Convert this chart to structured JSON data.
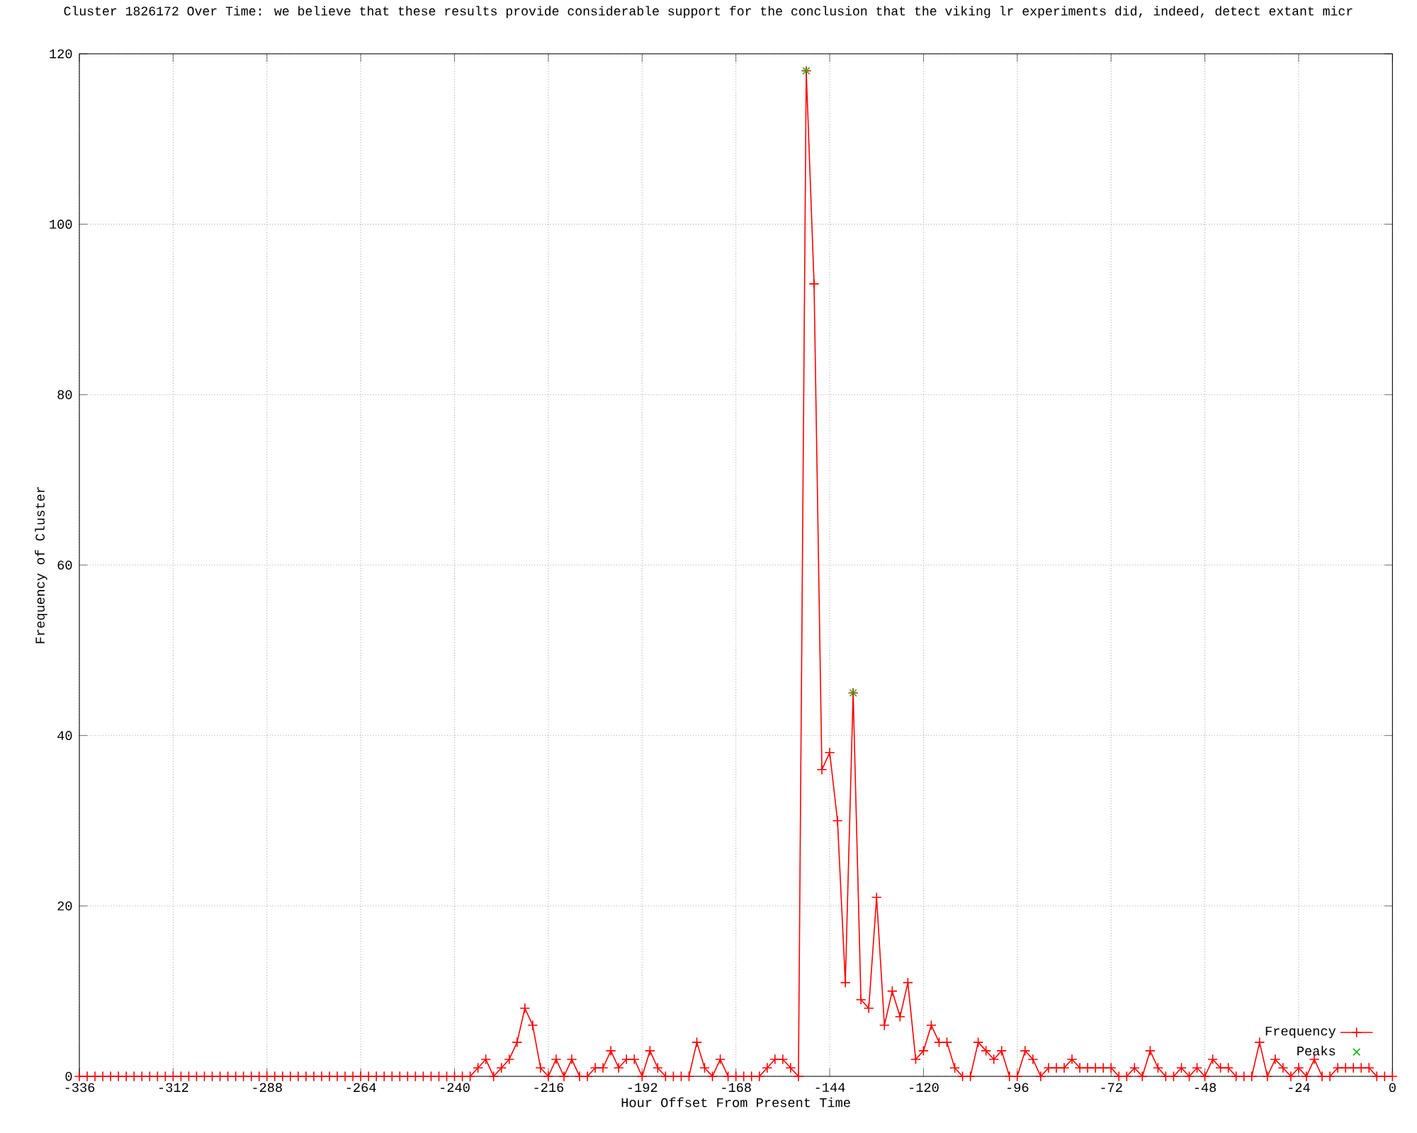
{
  "chart_data": {
    "type": "line",
    "title": "Cluster 1826172 Over Time: we believe that these results provide considerable support for the conclusion that the viking lr experiments did, indeed, detect extant micr",
    "xlabel": "Hour Offset From Present Time",
    "ylabel": "Frequency of Cluster",
    "xlim": [
      -336,
      0
    ],
    "ylim": [
      0,
      120
    ],
    "xticks": [
      -336,
      -312,
      -288,
      -264,
      -240,
      -216,
      -192,
      -168,
      -144,
      -120,
      -96,
      -72,
      -48,
      -24,
      0
    ],
    "yticks": [
      0,
      20,
      40,
      60,
      80,
      100,
      120
    ],
    "grid": true,
    "legend": "bottom right",
    "series": [
      {
        "name": "Frequency",
        "color": "#ff0000",
        "marker": "cross",
        "x": [
          -336,
          -334,
          -332,
          -330,
          -328,
          -326,
          -324,
          -322,
          -320,
          -318,
          -316,
          -314,
          -312,
          -310,
          -308,
          -306,
          -304,
          -302,
          -300,
          -298,
          -296,
          -294,
          -292,
          -290,
          -288,
          -286,
          -284,
          -282,
          -280,
          -278,
          -276,
          -274,
          -272,
          -270,
          -268,
          -266,
          -264,
          -262,
          -260,
          -258,
          -256,
          -254,
          -252,
          -250,
          -248,
          -246,
          -244,
          -242,
          -240,
          -238,
          -236,
          -234,
          -232,
          -230,
          -228,
          -226,
          -224,
          -222,
          -220,
          -218,
          -216,
          -214,
          -212,
          -210,
          -208,
          -206,
          -204,
          -202,
          -200,
          -198,
          -196,
          -194,
          -192,
          -190,
          -188,
          -186,
          -184,
          -182,
          -180,
          -178,
          -176,
          -174,
          -172,
          -170,
          -168,
          -166,
          -164,
          -162,
          -160,
          -158,
          -156,
          -154,
          -152,
          -150,
          -148,
          -146,
          -144,
          -142,
          -140,
          -138,
          -136,
          -134,
          -132,
          -130,
          -128,
          -126,
          -124,
          -122,
          -120,
          -118,
          -116,
          -114,
          -112,
          -110,
          -108,
          -106,
          -104,
          -102,
          -100,
          -98,
          -96,
          -94,
          -92,
          -90,
          -88,
          -86,
          -84,
          -82,
          -80,
          -78,
          -76,
          -74,
          -72,
          -70,
          -68,
          -66,
          -64,
          -62,
          -60,
          -58,
          -56,
          -54,
          -52,
          -50,
          -48,
          -46,
          -44,
          -42,
          -40,
          -38,
          -36,
          -34,
          -32,
          -30,
          -28,
          -26,
          -24,
          -22,
          -20,
          -18,
          -16,
          -14,
          -12,
          -10,
          -8,
          -6,
          -4,
          -2,
          0
        ],
        "values": [
          0,
          0,
          0,
          0,
          0,
          0,
          0,
          0,
          0,
          0,
          0,
          0,
          0,
          0,
          0,
          0,
          0,
          0,
          0,
          0,
          0,
          0,
          0,
          0,
          0,
          0,
          0,
          0,
          0,
          0,
          0,
          0,
          0,
          0,
          0,
          0,
          0,
          0,
          0,
          0,
          0,
          0,
          0,
          0,
          0,
          0,
          0,
          0,
          0,
          0,
          0,
          1,
          2,
          0,
          1,
          2,
          4,
          8,
          6,
          1,
          0,
          2,
          0,
          2,
          0,
          0,
          1,
          1,
          3,
          1,
          2,
          2,
          0,
          3,
          1,
          0,
          0,
          0,
          0,
          4,
          1,
          0,
          2,
          0,
          0,
          0,
          0,
          0,
          1,
          2,
          2,
          1,
          0,
          118,
          93,
          36,
          38,
          30,
          11,
          45,
          9,
          8,
          21,
          6,
          10,
          7,
          11,
          2,
          3,
          6,
          4,
          4,
          1,
          0,
          0,
          4,
          3,
          2,
          3,
          0,
          0,
          3,
          2,
          0,
          1,
          1,
          1,
          2,
          1,
          1,
          1,
          1,
          1,
          0,
          0,
          1,
          0,
          3,
          1,
          0,
          0,
          1,
          0,
          1,
          0,
          2,
          1,
          1,
          0,
          0,
          0,
          4,
          0,
          2,
          1,
          0,
          1,
          0,
          2,
          0,
          0,
          1,
          1,
          1,
          1,
          1,
          0,
          0,
          0
        ]
      },
      {
        "name": "Peaks",
        "type": "scatter",
        "color": "#00c000",
        "marker": "x",
        "x": [
          -150,
          -138
        ],
        "values": [
          118,
          45
        ]
      }
    ]
  }
}
